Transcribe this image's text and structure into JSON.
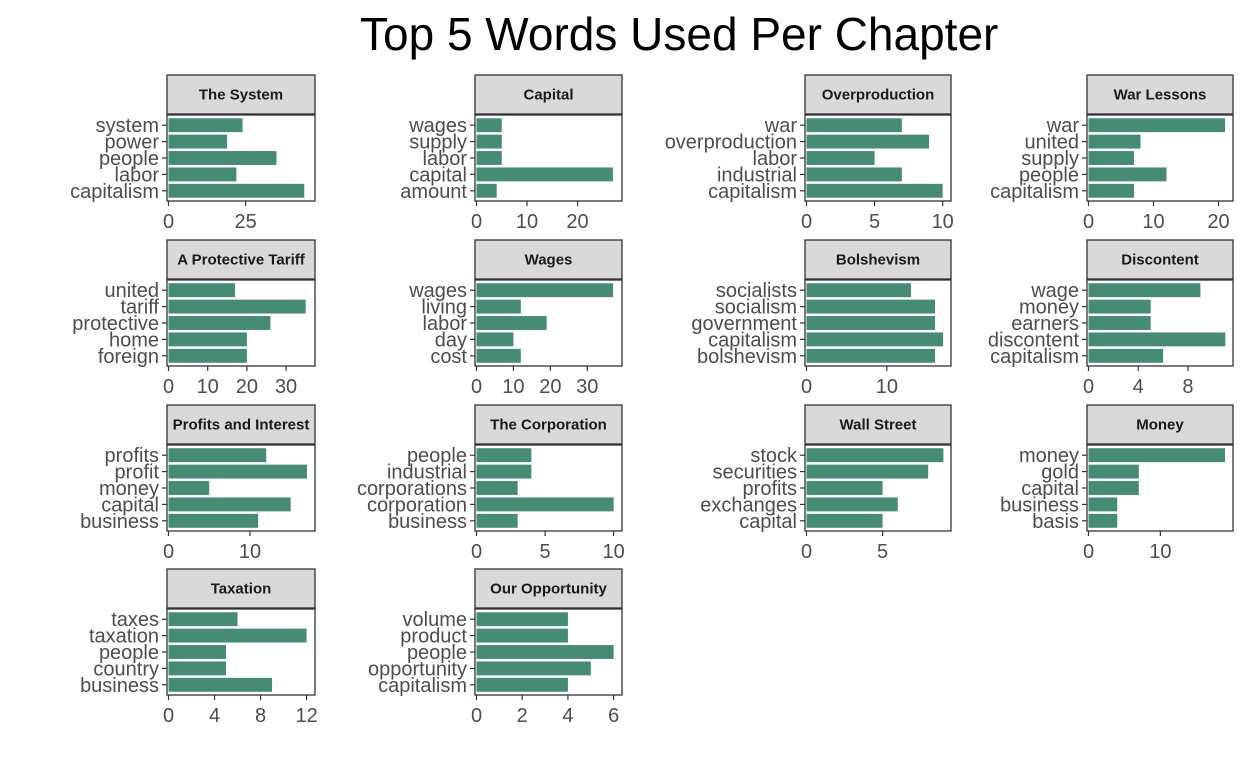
{
  "chart_data": {
    "type": "bar",
    "orientation": "horizontal",
    "title": "Top 5 Words Used Per Chapter",
    "bar_color": "#468c73",
    "strip_color": "#d9d9d9",
    "panels": [
      {
        "title": "The System",
        "words": [
          "system",
          "power",
          "people",
          "labor",
          "capitalism"
        ],
        "values": [
          24,
          19,
          35,
          22,
          44
        ],
        "xmax": 47,
        "ticks": [
          0,
          25
        ]
      },
      {
        "title": "Capital",
        "words": [
          "wages",
          "supply",
          "labor",
          "capital",
          "amount"
        ],
        "values": [
          5,
          5,
          5,
          27,
          4
        ],
        "xmax": 28.5,
        "ticks": [
          0,
          10,
          20
        ]
      },
      {
        "title": "Overproduction",
        "words": [
          "war",
          "overproduction",
          "labor",
          "industrial",
          "capitalism"
        ],
        "values": [
          7,
          9,
          5,
          7,
          10
        ],
        "xmax": 10.5,
        "ticks": [
          0,
          5,
          10
        ]
      },
      {
        "title": "War Lessons",
        "words": [
          "war",
          "united",
          "supply",
          "people",
          "capitalism"
        ],
        "values": [
          21,
          8,
          7,
          12,
          7
        ],
        "xmax": 22,
        "ticks": [
          0,
          10,
          20
        ]
      },
      {
        "title": "A Protective Tariff",
        "words": [
          "united",
          "tariff",
          "protective",
          "home",
          "foreign"
        ],
        "values": [
          17,
          35,
          26,
          20,
          20
        ],
        "xmax": 37,
        "ticks": [
          0,
          10,
          20,
          30
        ]
      },
      {
        "title": "Wages",
        "words": [
          "wages",
          "living",
          "labor",
          "day",
          "cost"
        ],
        "values": [
          37,
          12,
          19,
          10,
          12
        ],
        "xmax": 39,
        "ticks": [
          0,
          10,
          20,
          30
        ]
      },
      {
        "title": "Bolshevism",
        "words": [
          "socialists",
          "socialism",
          "government",
          "capitalism",
          "bolshevism"
        ],
        "values": [
          13,
          16,
          16,
          17,
          16
        ],
        "xmax": 17.8,
        "ticks": [
          0,
          10
        ]
      },
      {
        "title": "Discontent",
        "words": [
          "wage",
          "money",
          "earners",
          "discontent",
          "capitalism"
        ],
        "values": [
          9,
          5,
          5,
          11,
          6
        ],
        "xmax": 11.5,
        "ticks": [
          0,
          4,
          8
        ]
      },
      {
        "title": "Profits and Interest",
        "words": [
          "profits",
          "profit",
          "money",
          "capital",
          "business"
        ],
        "values": [
          12,
          17,
          5,
          15,
          11
        ],
        "xmax": 17.8,
        "ticks": [
          0,
          10
        ]
      },
      {
        "title": "The Corporation",
        "words": [
          "people",
          "industrial",
          "corporations",
          "corporation",
          "business"
        ],
        "values": [
          4,
          4,
          3,
          10,
          3
        ],
        "xmax": 10.5,
        "ticks": [
          0,
          5,
          10
        ]
      },
      {
        "title": "Wall Street",
        "words": [
          "stock",
          "securities",
          "profits",
          "exchanges",
          "capital"
        ],
        "values": [
          9,
          8,
          5,
          6,
          5
        ],
        "xmax": 9.4,
        "ticks": [
          0,
          5
        ]
      },
      {
        "title": "Money",
        "words": [
          "money",
          "gold",
          "capital",
          "business",
          "basis"
        ],
        "values": [
          19,
          7,
          7,
          4,
          4
        ],
        "xmax": 19.9,
        "ticks": [
          0,
          10
        ]
      },
      {
        "title": "Taxation",
        "words": [
          "taxes",
          "taxation",
          "people",
          "country",
          "business"
        ],
        "values": [
          6,
          12,
          5,
          5,
          9
        ],
        "xmax": 12.6,
        "ticks": [
          0,
          4,
          8,
          12
        ]
      },
      {
        "title": "Our Opportunity",
        "words": [
          "volume",
          "product",
          "people",
          "opportunity",
          "capitalism"
        ],
        "values": [
          4,
          4,
          6,
          5,
          4
        ],
        "xmax": 6.3,
        "ticks": [
          0,
          2,
          4,
          6
        ]
      }
    ]
  }
}
